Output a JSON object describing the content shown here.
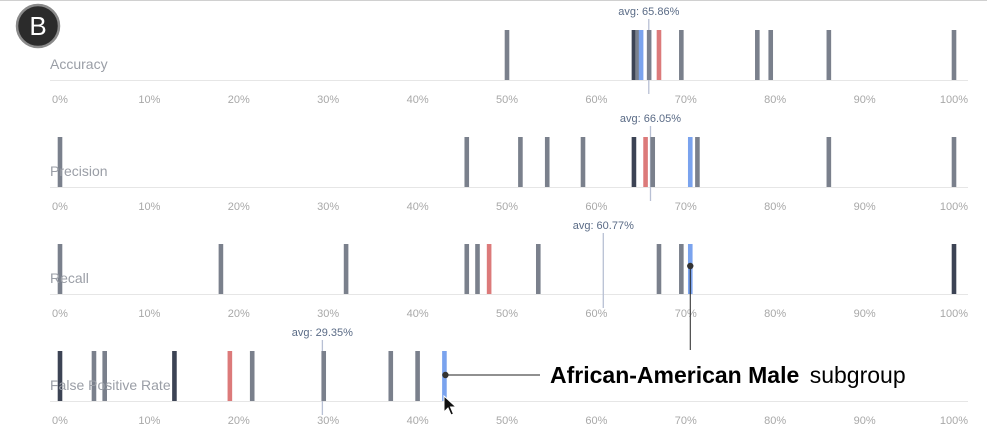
{
  "panel_badge": "B",
  "annotation": {
    "bold_text": "African-American Male",
    "normal_text": "subgroup",
    "target_metric": 1,
    "target_value": 70.5
  },
  "colors": {
    "bar_default": "#7a808c",
    "bar_dark": "#3c4354",
    "bar_highlight_red": "#dc7a7a",
    "bar_highlight_blue": "#7aa3ee",
    "avg_line": "#b8c0d4",
    "axis_line": "#e6e6e6",
    "tick_label": "#a8a8a8",
    "metric_label": "#9a9ea6",
    "avg_label": "#5a6b86"
  },
  "chart_data": {
    "type": "strip",
    "x_ticks": [
      "0%",
      "10%",
      "20%",
      "30%",
      "40%",
      "50%",
      "60%",
      "70%",
      "80%",
      "90%",
      "100%"
    ],
    "xlim": [
      0,
      100
    ],
    "metrics": [
      {
        "label": "Accuracy",
        "avg": 65.86,
        "avg_label": "avg: 65.86%",
        "values": [
          50,
          64.2,
          64.6,
          65,
          65.9,
          67,
          69.5,
          78,
          79.5,
          86,
          100
        ],
        "kinds": [
          "default",
          "dark",
          "default",
          "blue",
          "default",
          "red",
          "default",
          "default",
          "default",
          "default",
          "default"
        ]
      },
      {
        "label": "Precision",
        "avg": 66.05,
        "avg_label": "avg: 66.05%",
        "values": [
          0,
          45.5,
          51.5,
          54.5,
          58.5,
          64.2,
          65.5,
          66.3,
          70.5,
          71.3,
          86,
          100
        ],
        "kinds": [
          "default",
          "default",
          "default",
          "default",
          "default",
          "dark",
          "red",
          "default",
          "blue",
          "default",
          "default",
          "default"
        ]
      },
      {
        "label": "Recall",
        "avg": 60.77,
        "avg_label": "avg: 60.77%",
        "values": [
          0,
          18,
          32,
          45.5,
          46.7,
          48,
          53.5,
          67,
          69.5,
          70.5,
          100
        ],
        "kinds": [
          "default",
          "default",
          "default",
          "default",
          "default",
          "red",
          "default",
          "default",
          "default",
          "blue",
          "dark"
        ]
      },
      {
        "label": "False Positive Rate",
        "avg": 29.35,
        "avg_label": "avg: 29.35%",
        "values": [
          0,
          3.8,
          5,
          12.8,
          19,
          21.5,
          29.5,
          37,
          40,
          43
        ],
        "kinds": [
          "dark",
          "default",
          "default",
          "dark",
          "red",
          "default",
          "default",
          "default",
          "default",
          "blue"
        ]
      }
    ]
  }
}
